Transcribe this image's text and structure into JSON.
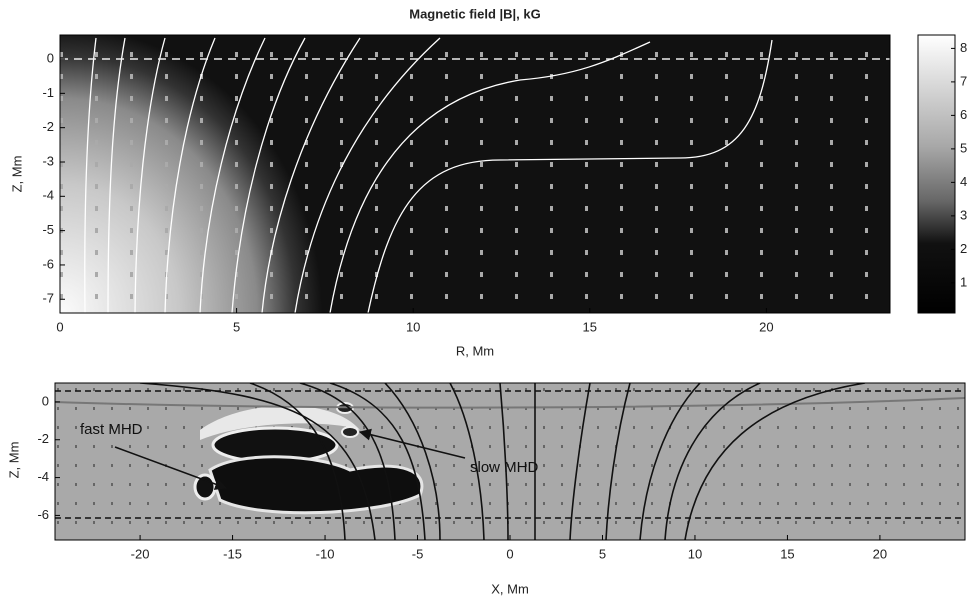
{
  "chart_data": [
    {
      "type": "heatmap",
      "title": "Magnetic field |B|, kG",
      "x_label": "R, Mm",
      "y_label": "Z, Mm",
      "xlim": [
        0,
        23.5
      ],
      "ylim": [
        -7.4,
        0.7
      ],
      "xticks": [
        0,
        5,
        10,
        15,
        20
      ],
      "yticks": [
        0,
        -1,
        -2,
        -3,
        -4,
        -5,
        -6,
        -7
      ],
      "colorbar": {
        "lim": [
          0.1,
          8.4
        ],
        "ticks": [
          1,
          2,
          3,
          4,
          5,
          6,
          7,
          8
        ]
      }
    },
    {
      "type": "heatmap",
      "x_label": "X, Mm",
      "y_label": "Z, Mm",
      "xlim": [
        -24.6,
        24.6
      ],
      "ylim": [
        -7.3,
        1.0
      ],
      "xticks": [
        -20,
        -15,
        -10,
        -5,
        0,
        5,
        10,
        15,
        20
      ],
      "yticks": [
        0,
        -2,
        -4,
        -6
      ],
      "annotations": [
        "fast MHD",
        "slow MHD"
      ]
    }
  ]
}
